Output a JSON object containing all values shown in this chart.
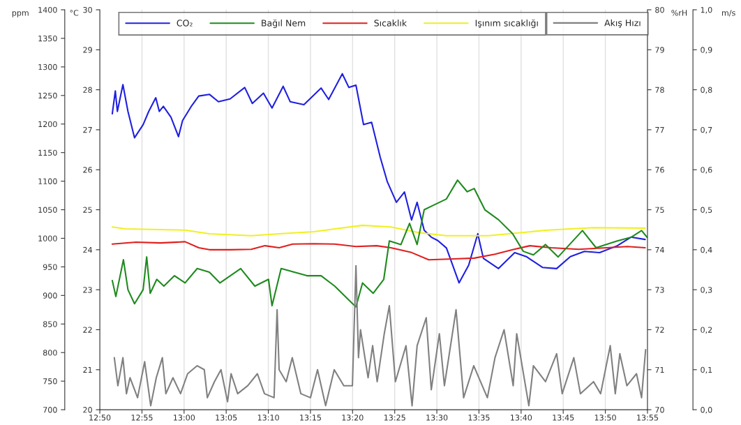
{
  "chart_data": [
    {
      "type": "line",
      "ylabel": "ppm",
      "y2label": "°C",
      "y3label": "%rH",
      "xlim": [
        12.8333,
        13.9167
      ],
      "xticks": [
        {
          "value": 12.8333,
          "label": "12:50"
        },
        {
          "value": 12.9167,
          "label": "12:55"
        },
        {
          "value": 13.0,
          "label": "13:00"
        },
        {
          "value": 13.0833,
          "label": "13:05"
        },
        {
          "value": 13.1667,
          "label": "13:10"
        },
        {
          "value": 13.25,
          "label": "13:15"
        },
        {
          "value": 13.3333,
          "label": "13:20"
        },
        {
          "value": 13.4167,
          "label": "13:25"
        },
        {
          "value": 13.5,
          "label": "13:30"
        },
        {
          "value": 13.5833,
          "label": "13:35"
        },
        {
          "value": 13.6667,
          "label": "13:40"
        },
        {
          "value": 13.75,
          "label": "13:45"
        },
        {
          "value": 13.8333,
          "label": "13:50"
        },
        {
          "value": 13.9167,
          "label": "13:55"
        }
      ],
      "ylim": [
        700,
        1400
      ],
      "yticks": [
        700,
        750,
        800,
        850,
        900,
        950,
        1000,
        1050,
        1100,
        1150,
        1200,
        1250,
        1300,
        1350,
        1400
      ],
      "y2lim": [
        20,
        30
      ],
      "y2ticks": [
        20,
        21,
        22,
        23,
        24,
        25,
        26,
        27,
        28,
        29,
        30
      ],
      "y3lim": [
        70,
        80
      ],
      "y3ticks": [
        70,
        71,
        72,
        73,
        74,
        75,
        76,
        77,
        78,
        79,
        80
      ],
      "grid": "x",
      "legend": "top",
      "line_style": "solid",
      "series": [
        {
          "name": "CO₂",
          "color": "#1f1fe0",
          "axis": "y",
          "x": [
            12.858,
            12.864,
            12.868,
            12.879,
            12.889,
            12.902,
            12.919,
            12.93,
            12.944,
            12.951,
            12.959,
            12.974,
            12.989,
            12.997,
            13.015,
            13.029,
            13.05,
            13.068,
            13.091,
            13.12,
            13.135,
            13.157,
            13.174,
            13.196,
            13.21,
            13.237,
            13.271,
            13.286,
            13.313,
            13.326,
            13.34,
            13.355,
            13.371,
            13.388,
            13.402,
            13.42,
            13.436,
            13.45,
            13.461,
            13.475,
            13.489,
            13.502,
            13.519,
            13.544,
            13.563,
            13.581,
            13.592,
            13.622,
            13.654,
            13.677,
            13.709,
            13.737,
            13.764,
            13.792,
            13.822,
            13.857,
            13.884,
            13.912
          ],
          "values": [
            1218,
            1258,
            1222,
            1269,
            1222,
            1176,
            1199,
            1222,
            1246,
            1222,
            1231,
            1212,
            1178,
            1206,
            1232,
            1249,
            1252,
            1239,
            1244,
            1264,
            1236,
            1254,
            1228,
            1266,
            1239,
            1234,
            1263,
            1243,
            1288,
            1264,
            1268,
            1199,
            1203,
            1142,
            1099,
            1063,
            1081,
            1032,
            1063,
            1014,
            1002,
            996,
            983,
            922,
            953,
            1008,
            965,
            947,
            975,
            968,
            949,
            947,
            968,
            977,
            975,
            987,
            1002,
            998
          ]
        },
        {
          "name": "Bağıl Nem",
          "color": "#1e8a1e",
          "axis": "y3",
          "x": [
            12.858,
            12.865,
            12.88,
            12.889,
            12.902,
            12.919,
            12.926,
            12.933,
            12.946,
            12.96,
            12.981,
            13.002,
            13.026,
            13.05,
            13.071,
            13.112,
            13.14,
            13.167,
            13.174,
            13.192,
            13.243,
            13.271,
            13.298,
            13.326,
            13.34,
            13.353,
            13.374,
            13.395,
            13.406,
            13.429,
            13.446,
            13.461,
            13.475,
            13.491,
            13.519,
            13.541,
            13.56,
            13.574,
            13.595,
            13.622,
            13.65,
            13.671,
            13.691,
            13.715,
            13.74,
            13.788,
            13.815,
            13.857,
            13.884,
            13.905,
            13.916
          ],
          "values": [
            73.23,
            72.83,
            73.75,
            73.0,
            72.65,
            73.0,
            73.82,
            72.91,
            73.26,
            73.09,
            73.35,
            73.17,
            73.53,
            73.44,
            73.17,
            73.53,
            73.09,
            73.26,
            72.6,
            73.53,
            73.35,
            73.35,
            73.09,
            72.74,
            72.57,
            73.17,
            72.91,
            73.26,
            74.22,
            74.13,
            74.66,
            74.13,
            75.0,
            75.1,
            75.27,
            75.74,
            75.45,
            75.53,
            75.0,
            74.75,
            74.4,
            73.96,
            73.87,
            74.13,
            73.82,
            74.48,
            74.05,
            74.22,
            74.31,
            74.48,
            74.31
          ]
        },
        {
          "name": "Sıcaklık",
          "color": "#e01f1f",
          "axis": "y2",
          "x": [
            12.858,
            12.905,
            12.953,
            13.002,
            13.029,
            13.05,
            13.091,
            13.133,
            13.16,
            13.188,
            13.215,
            13.257,
            13.298,
            13.34,
            13.381,
            13.409,
            13.45,
            13.484,
            13.533,
            13.574,
            13.615,
            13.65,
            13.684,
            13.726,
            13.781,
            13.836,
            13.877,
            13.912
          ],
          "values": [
            24.14,
            24.19,
            24.17,
            24.2,
            24.05,
            24.0,
            24.0,
            24.01,
            24.1,
            24.05,
            24.14,
            24.15,
            24.14,
            24.08,
            24.1,
            24.05,
            23.93,
            23.75,
            23.77,
            23.79,
            23.89,
            24.0,
            24.1,
            24.05,
            24.01,
            24.05,
            24.08,
            24.05
          ]
        },
        {
          "name": "Işınım sıcaklığı",
          "color": "#f0f020",
          "axis": "y2",
          "x": [
            12.858,
            12.884,
            13.002,
            13.05,
            13.133,
            13.188,
            13.257,
            13.298,
            13.353,
            13.409,
            13.464,
            13.519,
            13.602,
            13.719,
            13.809,
            13.912
          ],
          "values": [
            24.57,
            24.52,
            24.49,
            24.4,
            24.35,
            24.4,
            24.45,
            24.52,
            24.61,
            24.57,
            24.43,
            24.35,
            24.35,
            24.49,
            24.55,
            24.54
          ]
        }
      ]
    },
    {
      "type": "line",
      "ylabel": "m/s",
      "tick_labels": "y",
      "legend": "top",
      "line_style": "solid",
      "xlim": [
        12.8333,
        13.9167
      ],
      "ylim": [
        0,
        1.0
      ],
      "yticks": [
        {
          "value": 0,
          "label": "0,0"
        },
        {
          "value": 0.1,
          "label": "0,1"
        },
        {
          "value": 0.2,
          "label": "0,2"
        },
        {
          "value": 0.3,
          "label": "0,3"
        },
        {
          "value": 0.4,
          "label": "0,4"
        },
        {
          "value": 0.5,
          "label": "0,5"
        },
        {
          "value": 0.6,
          "label": "0,6"
        },
        {
          "value": 0.7,
          "label": "0,7"
        },
        {
          "value": 0.8,
          "label": "0,8"
        },
        {
          "value": 0.9,
          "label": "0,9"
        },
        {
          "value": 1.0,
          "label": "1,0"
        }
      ],
      "series": [
        {
          "name": "Akış Hızı",
          "color": "#808080",
          "axis": "y",
          "x": [
            12.862,
            12.869,
            12.879,
            12.886,
            12.893,
            12.908,
            12.922,
            12.934,
            12.945,
            12.957,
            12.964,
            12.978,
            12.993,
            13.007,
            13.026,
            13.04,
            13.046,
            13.06,
            13.073,
            13.086,
            13.093,
            13.106,
            13.126,
            13.145,
            13.159,
            13.178,
            13.184,
            13.188,
            13.202,
            13.214,
            13.231,
            13.25,
            13.264,
            13.28,
            13.297,
            13.316,
            13.333,
            13.34,
            13.345,
            13.349,
            13.364,
            13.373,
            13.382,
            13.396,
            13.406,
            13.418,
            13.439,
            13.451,
            13.461,
            13.479,
            13.489,
            13.505,
            13.515,
            13.538,
            13.553,
            13.573,
            13.6,
            13.615,
            13.633,
            13.651,
            13.658,
            13.682,
            13.691,
            13.715,
            13.737,
            13.748,
            13.771,
            13.784,
            13.81,
            13.824,
            13.843,
            13.853,
            13.862,
            13.876,
            13.895,
            13.905,
            13.913
          ],
          "values": [
            0.13,
            0.06,
            0.13,
            0.04,
            0.08,
            0.03,
            0.12,
            0.01,
            0.08,
            0.13,
            0.04,
            0.08,
            0.04,
            0.09,
            0.11,
            0.1,
            0.03,
            0.07,
            0.1,
            0.02,
            0.09,
            0.04,
            0.06,
            0.09,
            0.04,
            0.03,
            0.25,
            0.1,
            0.07,
            0.13,
            0.04,
            0.03,
            0.1,
            0.01,
            0.1,
            0.06,
            0.06,
            0.36,
            0.13,
            0.2,
            0.08,
            0.16,
            0.07,
            0.19,
            0.26,
            0.07,
            0.16,
            0.01,
            0.16,
            0.23,
            0.05,
            0.19,
            0.06,
            0.25,
            0.03,
            0.11,
            0.03,
            0.13,
            0.2,
            0.06,
            0.19,
            0.01,
            0.11,
            0.07,
            0.14,
            0.04,
            0.13,
            0.04,
            0.07,
            0.04,
            0.16,
            0.04,
            0.14,
            0.06,
            0.09,
            0.03,
            0.15
          ]
        }
      ]
    }
  ]
}
